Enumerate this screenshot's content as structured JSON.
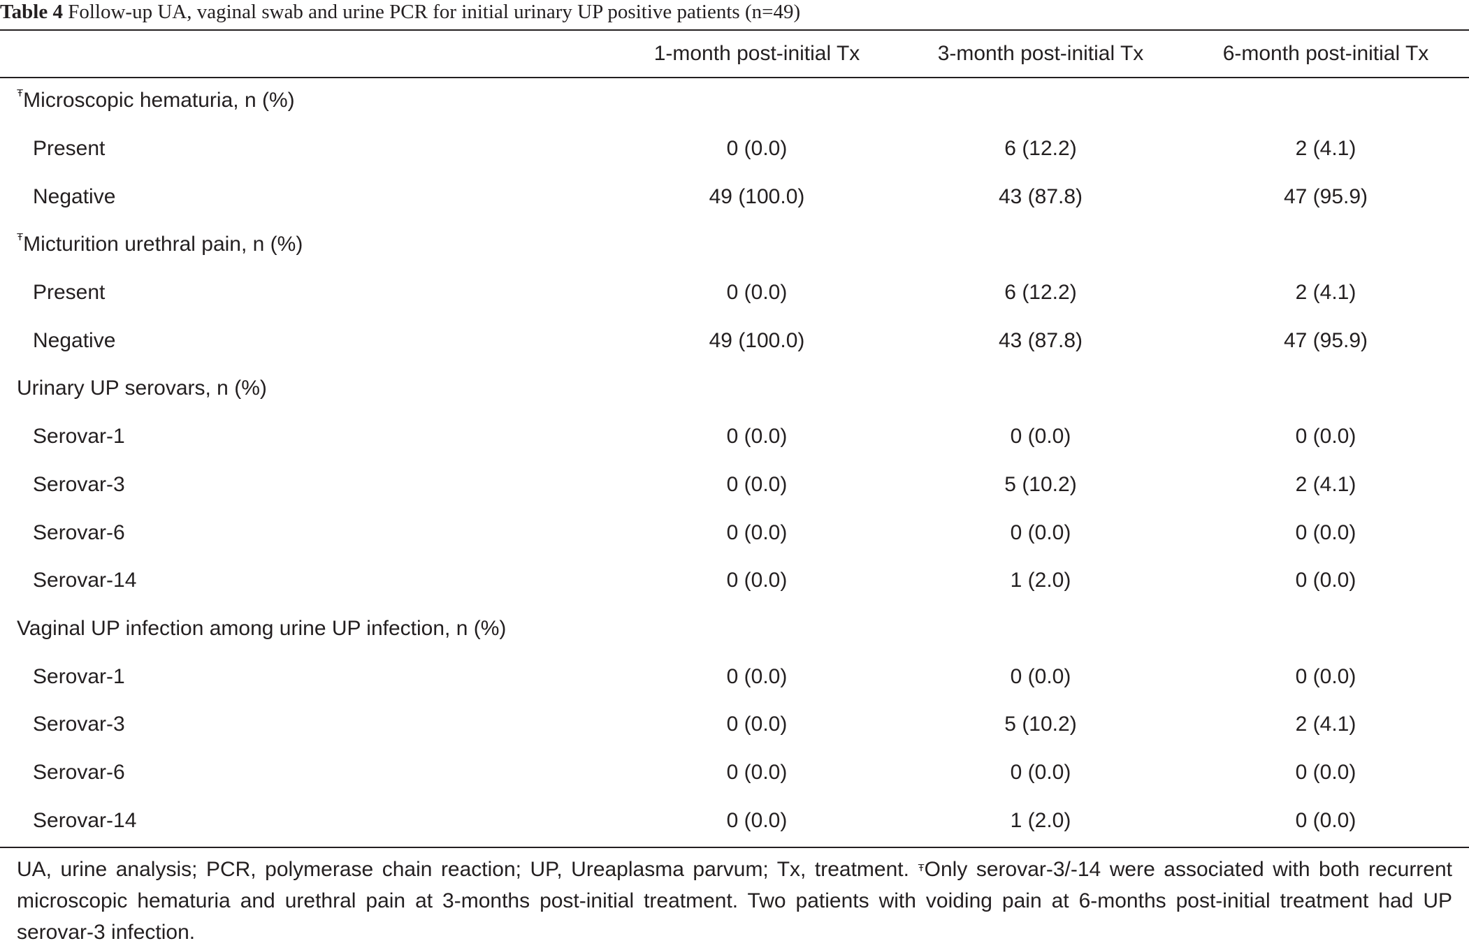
{
  "caption": {
    "label": "Table 4",
    "text": "Follow-up UA, vaginal swab and urine PCR for initial urinary UP positive patients (n=49)"
  },
  "header": {
    "col0": "",
    "col1": "1-month post-initial Tx",
    "col2": "3-month post-initial Tx",
    "col3": "6-month post-initial Tx"
  },
  "rows": [
    {
      "sup": "Ŧ",
      "label": "Microscopic hematuria, n (%)",
      "c1": "",
      "c2": "",
      "c3": ""
    },
    {
      "label": "Present",
      "c1": "0 (0.0)",
      "c2": "6 (12.2)",
      "c3": "2 (4.1)"
    },
    {
      "label": "Negative",
      "c1": "49 (100.0)",
      "c2": "43 (87.8)",
      "c3": "47 (95.9)"
    },
    {
      "sup": "Ŧ",
      "label": "Micturition urethral pain, n (%)",
      "c1": "",
      "c2": "",
      "c3": ""
    },
    {
      "label": "Present",
      "c1": "0 (0.0)",
      "c2": "6 (12.2)",
      "c3": "2 (4.1)"
    },
    {
      "label": "Negative",
      "c1": "49 (100.0)",
      "c2": "43 (87.8)",
      "c3": "47 (95.9)"
    },
    {
      "label": "Urinary UP serovars, n (%)",
      "c1": "",
      "c2": "",
      "c3": ""
    },
    {
      "label": "Serovar-1",
      "c1": "0 (0.0)",
      "c2": "0 (0.0)",
      "c3": "0 (0.0)"
    },
    {
      "label": "Serovar-3",
      "c1": "0 (0.0)",
      "c2": "5 (10.2)",
      "c3": "2 (4.1)"
    },
    {
      "label": "Serovar-6",
      "c1": "0 (0.0)",
      "c2": "0 (0.0)",
      "c3": "0 (0.0)"
    },
    {
      "label": "Serovar-14",
      "c1": "0 (0.0)",
      "c2": "1 (2.0)",
      "c3": "0 (0.0)"
    },
    {
      "label": "Vaginal UP infection among urine UP infection, n (%)",
      "c1": "",
      "c2": "",
      "c3": ""
    },
    {
      "label": "Serovar-1",
      "c1": "0 (0.0)",
      "c2": "0 (0.0)",
      "c3": "0 (0.0)"
    },
    {
      "label": "Serovar-3",
      "c1": "0 (0.0)",
      "c2": "5 (10.2)",
      "c3": "2 (4.1)"
    },
    {
      "label": "Serovar-6",
      "c1": "0 (0.0)",
      "c2": "0 (0.0)",
      "c3": "0 (0.0)"
    },
    {
      "label": "Serovar-14",
      "c1": "0 (0.0)",
      "c2": "1 (2.0)",
      "c3": "0 (0.0)"
    }
  ],
  "footnote": {
    "part1": "UA, urine analysis; PCR, polymerase chain reaction; UP, Ureaplasma parvum; Tx, treatment. ",
    "sup": "Ŧ",
    "part2": "Only serovar-3/-14 were associated with both recurrent microscopic hematuria and urethral pain at 3-months post-initial treatment. Two patients with voiding pain at 6-months post-initial treatment had UP serovar-3 infection."
  }
}
